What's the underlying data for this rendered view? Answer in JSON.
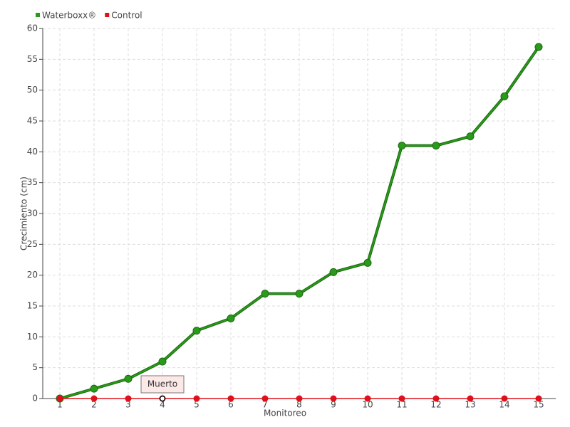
{
  "chart_data": {
    "type": "line",
    "xlabel": "Monitoreo",
    "ylabel": "Crecimiento (cm)",
    "categories": [
      "1",
      "2",
      "3",
      "4",
      "5",
      "6",
      "7",
      "8",
      "9",
      "10",
      "11",
      "12",
      "13",
      "14",
      "15"
    ],
    "series": [
      {
        "name": "Waterboxx®",
        "color": "#2a9a1a",
        "values": [
          0,
          1.6,
          3.2,
          6,
          11,
          13,
          17,
          17,
          20.5,
          22,
          41,
          41,
          42.5,
          49,
          57
        ]
      },
      {
        "name": "Control",
        "color": "#e0101a",
        "values": [
          0,
          0,
          0,
          0,
          0,
          0,
          0,
          0,
          0,
          0,
          0,
          0,
          0,
          0,
          0
        ]
      }
    ],
    "ylim": [
      0,
      60
    ],
    "yticks": [
      0,
      5,
      10,
      15,
      20,
      25,
      30,
      35,
      40,
      45,
      50,
      55,
      60
    ],
    "grid": true,
    "legend": "top-left",
    "annotations": [
      {
        "text": "Muerto",
        "series": "Control",
        "category": "4"
      }
    ]
  }
}
